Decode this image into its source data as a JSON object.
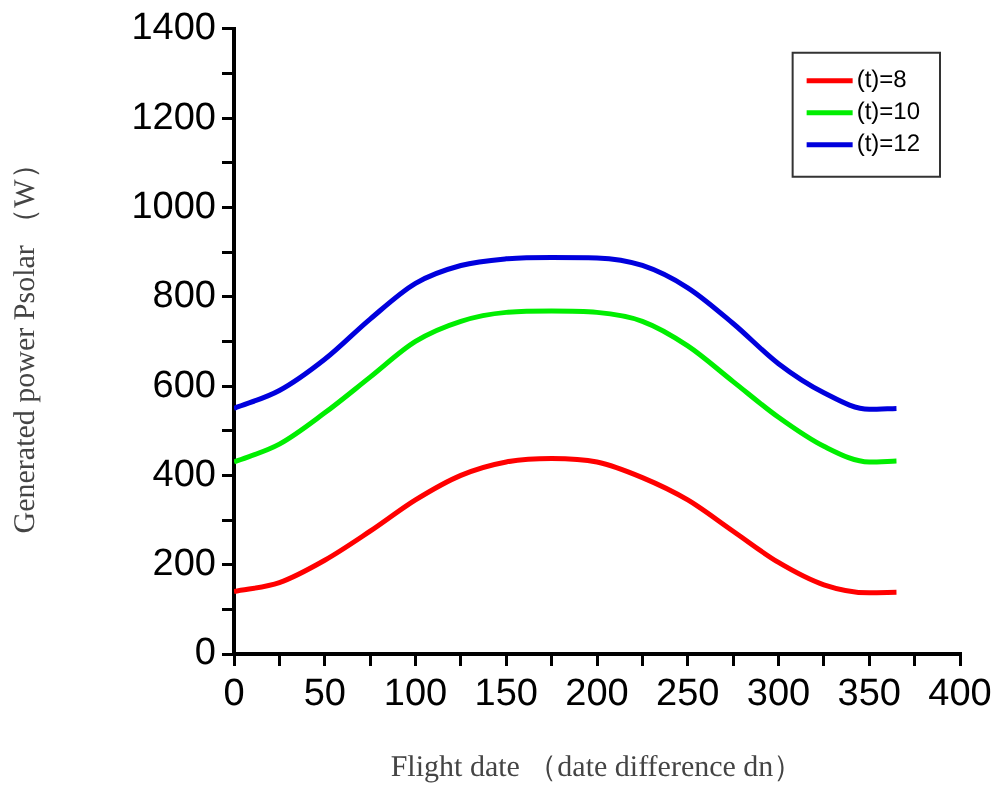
{
  "chart_data": {
    "type": "line",
    "xlabel": "Flight date （date difference dn）",
    "ylabel": "Generated power Psolar （W）",
    "x": [
      0,
      25,
      50,
      75,
      100,
      125,
      150,
      175,
      200,
      225,
      250,
      275,
      300,
      325,
      350,
      365
    ],
    "series": [
      {
        "name": "(t)=8",
        "color": "#ff0000",
        "values": [
          140,
          160,
          210,
          275,
          345,
          400,
          430,
          438,
          430,
          395,
          345,
          275,
          205,
          155,
          137,
          138
        ]
      },
      {
        "name": "(t)=10",
        "color": "#00ee00",
        "values": [
          430,
          470,
          540,
          620,
          700,
          745,
          765,
          768,
          765,
          745,
          690,
          610,
          530,
          465,
          430,
          432
        ]
      },
      {
        "name": "(t)=12",
        "color": "#0000dd",
        "values": [
          550,
          590,
          660,
          750,
          830,
          870,
          885,
          888,
          887,
          870,
          820,
          740,
          650,
          585,
          548,
          550
        ]
      }
    ],
    "xlim": [
      0,
      400
    ],
    "xticks": [
      0,
      {
        "value": 25,
        "label": null
      },
      50,
      {
        "value": 75,
        "label": null
      },
      100,
      {
        "value": 125,
        "label": null
      },
      150,
      {
        "value": 175,
        "label": null
      },
      200,
      {
        "value": 225,
        "label": null
      },
      250,
      {
        "value": 275,
        "label": null
      },
      300,
      {
        "value": 325,
        "label": null
      },
      350,
      {
        "value": 375,
        "label": null
      },
      400
    ],
    "ylim": [
      0,
      1400
    ],
    "yticks": [
      0,
      {
        "value": 100,
        "label": null
      },
      200,
      {
        "value": 300,
        "label": null
      },
      400,
      {
        "value": 500,
        "label": null
      },
      600,
      {
        "value": 700,
        "label": null
      },
      800,
      {
        "value": 900,
        "label": null
      },
      1000,
      {
        "value": 1100,
        "label": null
      },
      1200,
      {
        "value": 1300,
        "label": null
      },
      1400
    ],
    "grid": false,
    "legend": "top right",
    "marker": "none",
    "line_style": "solid"
  }
}
